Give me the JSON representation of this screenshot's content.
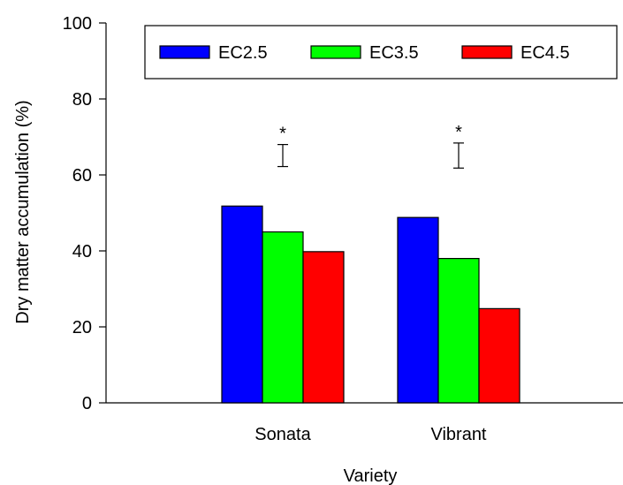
{
  "chart_data": {
    "type": "bar",
    "title": "",
    "xlabel": "Variety",
    "ylabel": "Dry matter accumulation (%)",
    "categories": [
      "Sonata",
      "Vibrant"
    ],
    "series": [
      {
        "name": "EC2.5",
        "color": "#0000ff",
        "values": [
          51.8,
          48.8
        ]
      },
      {
        "name": "EC3.5",
        "color": "#00ff00",
        "values": [
          45.0,
          38.0
        ]
      },
      {
        "name": "EC4.5",
        "color": "#ff0000",
        "values": [
          39.8,
          24.8
        ]
      }
    ],
    "ylim": [
      0,
      100
    ],
    "yticks": [
      0,
      20,
      40,
      60,
      80,
      100
    ],
    "yticklabels": [
      "0",
      "20",
      "40",
      "60",
      "80",
      "100"
    ],
    "legend_position": "top",
    "grid": false,
    "annotations": [
      {
        "category": "Sonata",
        "error_bar": [
          62.2,
          68.0
        ],
        "marker": "*"
      },
      {
        "category": "Vibrant",
        "error_bar": [
          61.8,
          68.4
        ],
        "marker": "*"
      }
    ]
  }
}
